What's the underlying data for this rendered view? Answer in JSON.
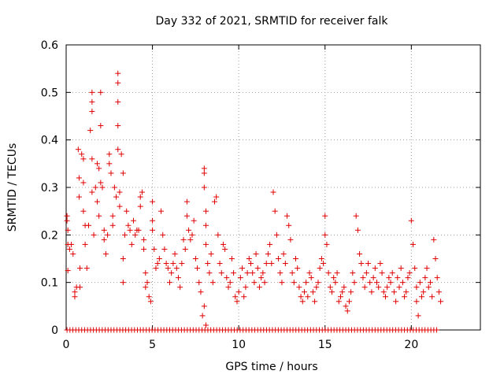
{
  "chart_data": {
    "type": "scatter",
    "title": "Day 332 of 2021, SRMTID for receiver falk",
    "xlabel": "GPS time / hours",
    "ylabel": "SRMTID / TECUs",
    "xlim": [
      0,
      24
    ],
    "ylim": [
      0,
      0.6
    ],
    "xticks": [
      0,
      5,
      10,
      15,
      20
    ],
    "yticks": [
      0,
      0.1,
      0.2,
      0.3,
      0.4,
      0.5,
      0.6
    ],
    "xtick_labels": [
      "0",
      "5",
      "10",
      "15",
      "20"
    ],
    "ytick_labels": [
      "0",
      "0.1",
      "0.2",
      "0.3",
      "0.4",
      "0.5",
      "0.6"
    ],
    "grid": true,
    "marker": "plus",
    "color": "#e00000",
    "series": [
      {
        "name": "SRMTID",
        "points": [
          [
            0.05,
            0.24
          ],
          [
            0.05,
            0.23
          ],
          [
            0.1,
            0.21
          ],
          [
            0.1,
            0.18
          ],
          [
            0.1,
            0.125
          ],
          [
            0.2,
            0.17
          ],
          [
            0.3,
            0.18
          ],
          [
            0.4,
            0.16
          ],
          [
            0.5,
            0.07
          ],
          [
            0.5,
            0.08
          ],
          [
            0.6,
            0.09
          ],
          [
            0.7,
            0.38
          ],
          [
            0.75,
            0.32
          ],
          [
            0.75,
            0.28
          ],
          [
            0.8,
            0.13
          ],
          [
            0.8,
            0.09
          ],
          [
            0.9,
            0.37
          ],
          [
            1.0,
            0.36
          ],
          [
            1.0,
            0.31
          ],
          [
            1.0,
            0.25
          ],
          [
            1.1,
            0.22
          ],
          [
            1.1,
            0.18
          ],
          [
            1.2,
            0.13
          ],
          [
            1.3,
            0.22
          ],
          [
            1.4,
            0.42
          ],
          [
            1.5,
            0.5
          ],
          [
            1.5,
            0.48
          ],
          [
            1.5,
            0.46
          ],
          [
            1.5,
            0.36
          ],
          [
            1.5,
            0.29
          ],
          [
            1.6,
            0.2
          ],
          [
            1.7,
            0.3
          ],
          [
            1.8,
            0.35
          ],
          [
            1.8,
            0.27
          ],
          [
            1.9,
            0.24
          ],
          [
            1.9,
            0.34
          ],
          [
            2.0,
            0.5
          ],
          [
            2.0,
            0.43
          ],
          [
            2.0,
            0.31
          ],
          [
            2.1,
            0.3
          ],
          [
            2.2,
            0.21
          ],
          [
            2.2,
            0.19
          ],
          [
            2.3,
            0.16
          ],
          [
            2.4,
            0.2
          ],
          [
            2.5,
            0.37
          ],
          [
            2.5,
            0.35
          ],
          [
            2.6,
            0.33
          ],
          [
            2.7,
            0.24
          ],
          [
            2.7,
            0.22
          ],
          [
            2.8,
            0.3
          ],
          [
            2.9,
            0.28
          ],
          [
            3.0,
            0.54
          ],
          [
            3.0,
            0.52
          ],
          [
            3.0,
            0.48
          ],
          [
            3.0,
            0.43
          ],
          [
            3.0,
            0.38
          ],
          [
            3.1,
            0.29
          ],
          [
            3.1,
            0.26
          ],
          [
            3.2,
            0.37
          ],
          [
            3.3,
            0.33
          ],
          [
            3.3,
            0.15
          ],
          [
            3.3,
            0.1
          ],
          [
            3.4,
            0.2
          ],
          [
            3.5,
            0.25
          ],
          [
            3.6,
            0.22
          ],
          [
            3.7,
            0.21
          ],
          [
            3.8,
            0.18
          ],
          [
            3.9,
            0.23
          ],
          [
            4.0,
            0.2
          ],
          [
            4.1,
            0.21
          ],
          [
            4.2,
            0.21
          ],
          [
            4.3,
            0.28
          ],
          [
            4.3,
            0.26
          ],
          [
            4.4,
            0.29
          ],
          [
            4.5,
            0.19
          ],
          [
            4.5,
            0.17
          ],
          [
            4.6,
            0.12
          ],
          [
            4.6,
            0.09
          ],
          [
            4.7,
            0.1
          ],
          [
            4.8,
            0.07
          ],
          [
            4.9,
            0.06
          ],
          [
            5.0,
            0.27
          ],
          [
            5.0,
            0.23
          ],
          [
            5.0,
            0.21
          ],
          [
            5.1,
            0.17
          ],
          [
            5.2,
            0.13
          ],
          [
            5.3,
            0.14
          ],
          [
            5.4,
            0.15
          ],
          [
            5.5,
            0.25
          ],
          [
            5.6,
            0.2
          ],
          [
            5.7,
            0.17
          ],
          [
            5.8,
            0.14
          ],
          [
            5.9,
            0.13
          ],
          [
            6.0,
            0.1
          ],
          [
            6.1,
            0.12
          ],
          [
            6.2,
            0.14
          ],
          [
            6.3,
            0.16
          ],
          [
            6.4,
            0.13
          ],
          [
            6.5,
            0.11
          ],
          [
            6.6,
            0.09
          ],
          [
            6.7,
            0.14
          ],
          [
            6.8,
            0.19
          ],
          [
            6.9,
            0.17
          ],
          [
            7.0,
            0.24
          ],
          [
            7.0,
            0.27
          ],
          [
            7.1,
            0.21
          ],
          [
            7.2,
            0.19
          ],
          [
            7.3,
            0.2
          ],
          [
            7.4,
            0.23
          ],
          [
            7.5,
            0.15
          ],
          [
            7.6,
            0.13
          ],
          [
            7.7,
            0.1
          ],
          [
            7.8,
            0.08
          ],
          [
            7.9,
            0.03
          ],
          [
            8.0,
            0.05
          ],
          [
            8.0,
            0.33
          ],
          [
            8.0,
            0.34
          ],
          [
            8.0,
            0.3
          ],
          [
            8.1,
            0.25
          ],
          [
            8.1,
            0.22
          ],
          [
            8.1,
            0.18
          ],
          [
            8.1,
            0.01
          ],
          [
            8.2,
            0.14
          ],
          [
            8.3,
            0.12
          ],
          [
            8.4,
            0.16
          ],
          [
            8.5,
            0.1
          ],
          [
            8.6,
            0.27
          ],
          [
            8.7,
            0.28
          ],
          [
            8.8,
            0.2
          ],
          [
            8.9,
            0.14
          ],
          [
            9.0,
            0.12
          ],
          [
            9.1,
            0.18
          ],
          [
            9.2,
            0.17
          ],
          [
            9.3,
            0.11
          ],
          [
            9.4,
            0.09
          ],
          [
            9.5,
            0.1
          ],
          [
            9.6,
            0.15
          ],
          [
            9.7,
            0.12
          ],
          [
            9.8,
            0.07
          ],
          [
            9.9,
            0.06
          ],
          [
            10.0,
            0.08
          ],
          [
            10.1,
            0.11
          ],
          [
            10.2,
            0.13
          ],
          [
            10.3,
            0.07
          ],
          [
            10.4,
            0.09
          ],
          [
            10.5,
            0.12
          ],
          [
            10.6,
            0.15
          ],
          [
            10.7,
            0.14
          ],
          [
            10.8,
            0.12
          ],
          [
            10.9,
            0.1
          ],
          [
            11.0,
            0.16
          ],
          [
            11.1,
            0.13
          ],
          [
            11.2,
            0.09
          ],
          [
            11.3,
            0.11
          ],
          [
            11.4,
            0.12
          ],
          [
            11.5,
            0.1
          ],
          [
            11.6,
            0.14
          ],
          [
            11.7,
            0.16
          ],
          [
            11.8,
            0.18
          ],
          [
            11.9,
            0.14
          ],
          [
            12.0,
            0.29
          ],
          [
            12.1,
            0.25
          ],
          [
            12.2,
            0.2
          ],
          [
            12.3,
            0.15
          ],
          [
            12.4,
            0.12
          ],
          [
            12.5,
            0.1
          ],
          [
            12.6,
            0.16
          ],
          [
            12.7,
            0.14
          ],
          [
            12.8,
            0.24
          ],
          [
            12.9,
            0.22
          ],
          [
            13.0,
            0.19
          ],
          [
            13.1,
            0.12
          ],
          [
            13.2,
            0.1
          ],
          [
            13.3,
            0.15
          ],
          [
            13.4,
            0.13
          ],
          [
            13.5,
            0.09
          ],
          [
            13.6,
            0.07
          ],
          [
            13.7,
            0.06
          ],
          [
            13.8,
            0.08
          ],
          [
            13.9,
            0.1
          ],
          [
            14.0,
            0.07
          ],
          [
            14.1,
            0.12
          ],
          [
            14.2,
            0.11
          ],
          [
            14.3,
            0.08
          ],
          [
            14.4,
            0.06
          ],
          [
            14.5,
            0.09
          ],
          [
            14.6,
            0.1
          ],
          [
            14.7,
            0.13
          ],
          [
            14.8,
            0.15
          ],
          [
            14.9,
            0.14
          ],
          [
            15.0,
            0.24
          ],
          [
            15.0,
            0.2
          ],
          [
            15.1,
            0.18
          ],
          [
            15.2,
            0.12
          ],
          [
            15.3,
            0.09
          ],
          [
            15.4,
            0.08
          ],
          [
            15.5,
            0.11
          ],
          [
            15.6,
            0.1
          ],
          [
            15.7,
            0.12
          ],
          [
            15.8,
            0.06
          ],
          [
            15.9,
            0.07
          ],
          [
            16.0,
            0.08
          ],
          [
            16.1,
            0.09
          ],
          [
            16.2,
            0.05
          ],
          [
            16.3,
            0.04
          ],
          [
            16.4,
            0.06
          ],
          [
            16.5,
            0.08
          ],
          [
            16.6,
            0.12
          ],
          [
            16.7,
            0.1
          ],
          [
            16.8,
            0.24
          ],
          [
            16.9,
            0.21
          ],
          [
            17.0,
            0.16
          ],
          [
            17.1,
            0.14
          ],
          [
            17.2,
            0.11
          ],
          [
            17.3,
            0.09
          ],
          [
            17.4,
            0.12
          ],
          [
            17.5,
            0.14
          ],
          [
            17.6,
            0.1
          ],
          [
            17.7,
            0.08
          ],
          [
            17.8,
            0.11
          ],
          [
            17.9,
            0.13
          ],
          [
            18.0,
            0.1
          ],
          [
            18.1,
            0.09
          ],
          [
            18.2,
            0.14
          ],
          [
            18.3,
            0.12
          ],
          [
            18.4,
            0.08
          ],
          [
            18.5,
            0.07
          ],
          [
            18.6,
            0.09
          ],
          [
            18.7,
            0.11
          ],
          [
            18.8,
            0.1
          ],
          [
            18.9,
            0.12
          ],
          [
            19.0,
            0.08
          ],
          [
            19.1,
            0.06
          ],
          [
            19.2,
            0.11
          ],
          [
            19.3,
            0.09
          ],
          [
            19.4,
            0.13
          ],
          [
            19.5,
            0.1
          ],
          [
            19.6,
            0.07
          ],
          [
            19.7,
            0.08
          ],
          [
            19.8,
            0.11
          ],
          [
            19.9,
            0.12
          ],
          [
            20.0,
            0.23
          ],
          [
            20.1,
            0.18
          ],
          [
            20.2,
            0.13
          ],
          [
            20.3,
            0.09
          ],
          [
            20.3,
            0.06
          ],
          [
            20.4,
            0.03
          ],
          [
            20.5,
            0.1
          ],
          [
            20.6,
            0.07
          ],
          [
            20.7,
            0.08
          ],
          [
            20.8,
            0.11
          ],
          [
            20.9,
            0.13
          ],
          [
            21.0,
            0.09
          ],
          [
            21.1,
            0.1
          ],
          [
            21.2,
            0.07
          ],
          [
            21.3,
            0.19
          ],
          [
            21.4,
            0.15
          ],
          [
            21.5,
            0.11
          ],
          [
            21.6,
            0.08
          ],
          [
            21.7,
            0.06
          ]
        ]
      },
      {
        "name": "zero-baseline",
        "points_note": "repeated points at 0 across the observation window",
        "x_start": 0.05,
        "x_end": 21.5,
        "x_step": 0.17,
        "y": 0
      }
    ]
  }
}
